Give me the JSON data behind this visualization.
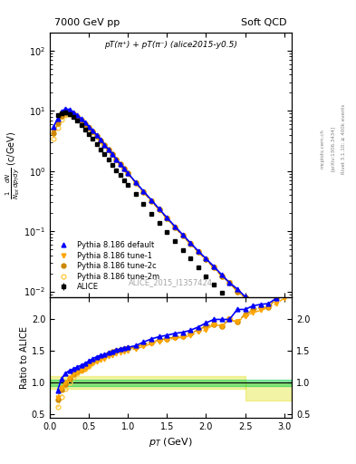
{
  "title_left": "7000 GeV pp",
  "title_right": "Soft QCD",
  "annotation": "pT(π⁺) + pT(π⁻) (alice2015-y0.5)",
  "watermark": "ALICE_2015_I1357424",
  "rivet_text": "Rivet 3.1.10; ≥ 400k events",
  "arxiv_text": "[arXiv:1306.3434]",
  "mcplots_text": "mcplots.cern.ch",
  "xlim": [
    0.0,
    3.1
  ],
  "ylim_main": [
    0.008,
    200
  ],
  "ylim_ratio": [
    0.45,
    2.35
  ],
  "ratio_yticks": [
    0.5,
    1.0,
    1.5,
    2.0
  ],
  "colors": {
    "alice": "#000000",
    "default": "#0000ff",
    "tune1": "#ffa500",
    "tune2c": "#cc8800",
    "tune2m": "#ffcc44"
  },
  "pt_alice": [
    0.1,
    0.15,
    0.2,
    0.25,
    0.3,
    0.35,
    0.4,
    0.45,
    0.5,
    0.55,
    0.6,
    0.65,
    0.7,
    0.75,
    0.8,
    0.85,
    0.9,
    0.95,
    1.0,
    1.1,
    1.2,
    1.3,
    1.4,
    1.5,
    1.6,
    1.7,
    1.8,
    1.9,
    2.0,
    2.1,
    2.2,
    2.3,
    2.4,
    2.5,
    2.6,
    2.7,
    2.8,
    2.9,
    3.0
  ],
  "y_alice": [
    8.5,
    9.2,
    9.4,
    8.8,
    7.8,
    6.8,
    5.8,
    4.9,
    4.1,
    3.4,
    2.8,
    2.3,
    1.9,
    1.55,
    1.27,
    1.04,
    0.86,
    0.71,
    0.59,
    0.41,
    0.28,
    0.195,
    0.136,
    0.096,
    0.068,
    0.049,
    0.035,
    0.025,
    0.018,
    0.013,
    0.0095,
    0.007,
    0.0051,
    0.0038,
    0.0028,
    0.0021,
    0.0016,
    0.0012,
    0.0009
  ],
  "y_alice_err": [
    0.4,
    0.4,
    0.4,
    0.4,
    0.35,
    0.3,
    0.25,
    0.2,
    0.18,
    0.15,
    0.12,
    0.1,
    0.08,
    0.07,
    0.055,
    0.045,
    0.038,
    0.032,
    0.026,
    0.018,
    0.013,
    0.009,
    0.006,
    0.004,
    0.003,
    0.002,
    0.0015,
    0.001,
    0.0008,
    0.0006,
    0.0004,
    0.0003,
    0.00022,
    0.00016,
    0.00012,
    9e-05,
    7e-05,
    5e-05,
    4e-05
  ],
  "pt_mc": [
    0.05,
    0.1,
    0.15,
    0.2,
    0.25,
    0.3,
    0.35,
    0.4,
    0.45,
    0.5,
    0.55,
    0.6,
    0.65,
    0.7,
    0.75,
    0.8,
    0.85,
    0.9,
    0.95,
    1.0,
    1.1,
    1.2,
    1.3,
    1.4,
    1.5,
    1.6,
    1.7,
    1.8,
    1.9,
    2.0,
    2.1,
    2.2,
    2.3,
    2.4,
    2.5,
    2.6,
    2.7,
    2.8,
    2.9,
    3.0
  ],
  "y_default": [
    5.5,
    7.5,
    9.8,
    10.8,
    10.5,
    9.5,
    8.5,
    7.4,
    6.4,
    5.5,
    4.7,
    3.95,
    3.3,
    2.75,
    2.28,
    1.9,
    1.58,
    1.32,
    1.1,
    0.92,
    0.65,
    0.46,
    0.33,
    0.235,
    0.168,
    0.121,
    0.088,
    0.064,
    0.047,
    0.035,
    0.026,
    0.019,
    0.014,
    0.011,
    0.0082,
    0.0062,
    0.0047,
    0.0036,
    0.0028,
    0.0022
  ],
  "y_tune1": [
    4.5,
    6.5,
    8.5,
    9.5,
    9.5,
    8.8,
    7.9,
    6.9,
    6.0,
    5.2,
    4.45,
    3.75,
    3.15,
    2.63,
    2.19,
    1.83,
    1.52,
    1.27,
    1.06,
    0.89,
    0.63,
    0.44,
    0.315,
    0.225,
    0.161,
    0.116,
    0.084,
    0.061,
    0.045,
    0.033,
    0.025,
    0.018,
    0.014,
    0.01,
    0.0078,
    0.0059,
    0.0045,
    0.0035,
    0.0027,
    0.0021
  ],
  "y_tune2c": [
    4.2,
    6.2,
    8.2,
    9.2,
    9.4,
    8.8,
    8.0,
    7.0,
    6.1,
    5.3,
    4.55,
    3.85,
    3.24,
    2.71,
    2.26,
    1.89,
    1.57,
    1.31,
    1.09,
    0.91,
    0.64,
    0.45,
    0.32,
    0.228,
    0.163,
    0.117,
    0.085,
    0.062,
    0.046,
    0.034,
    0.025,
    0.018,
    0.014,
    0.01,
    0.0079,
    0.006,
    0.0046,
    0.0035,
    0.0028,
    0.0022
  ],
  "y_tune2m": [
    3.5,
    5.2,
    7.2,
    8.5,
    8.9,
    8.5,
    7.8,
    6.9,
    6.0,
    5.2,
    4.5,
    3.82,
    3.22,
    2.7,
    2.25,
    1.88,
    1.57,
    1.31,
    1.09,
    0.91,
    0.64,
    0.45,
    0.32,
    0.228,
    0.163,
    0.117,
    0.085,
    0.062,
    0.046,
    0.034,
    0.025,
    0.018,
    0.014,
    0.01,
    0.0079,
    0.006,
    0.0046,
    0.0035,
    0.0028,
    0.0022
  ]
}
